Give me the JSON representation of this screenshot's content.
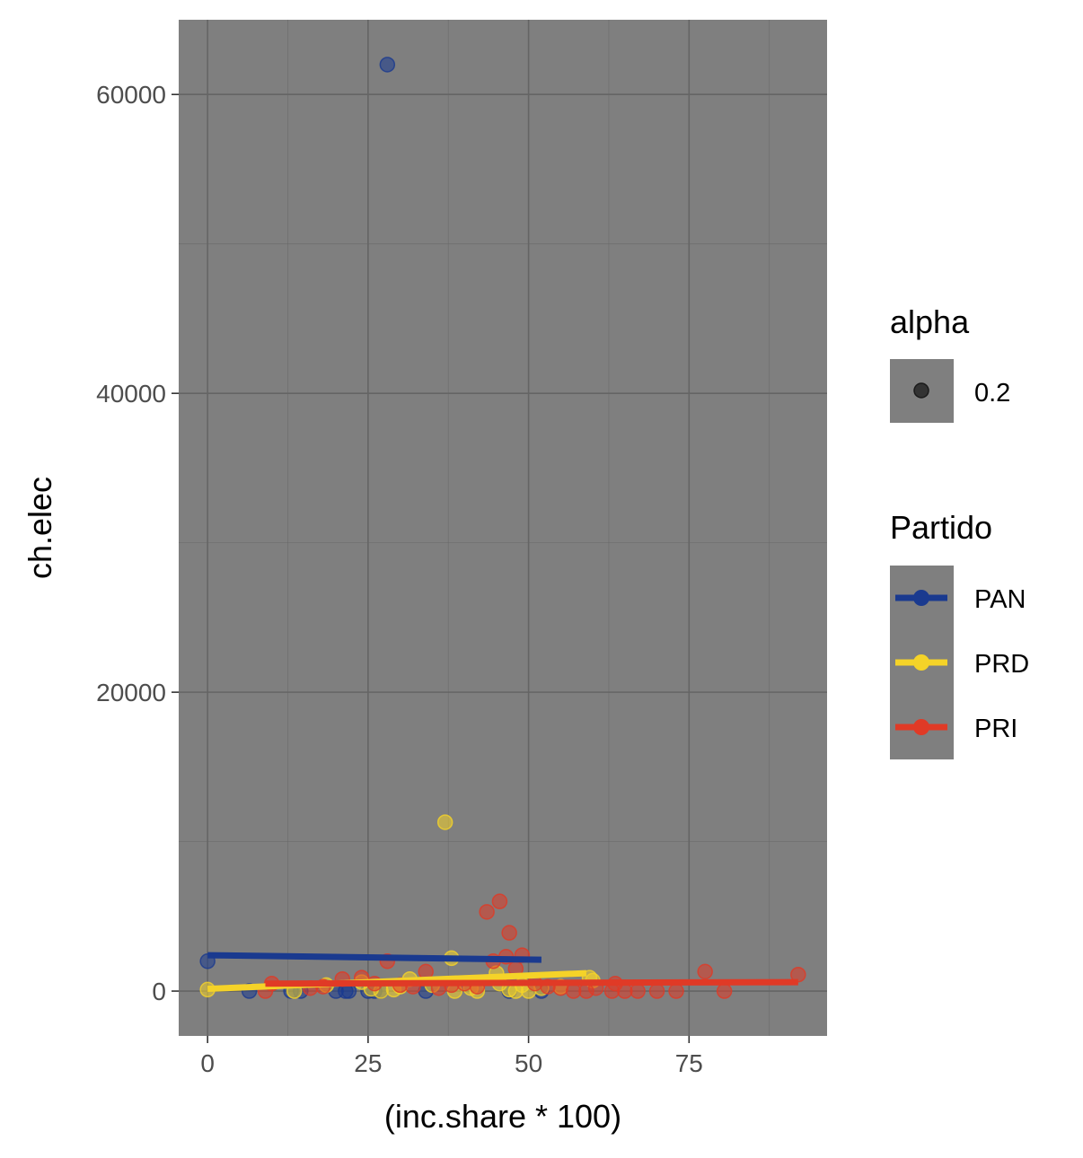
{
  "chart_data": {
    "type": "scatter",
    "title": "",
    "xlabel": "(inc.share * 100)",
    "ylabel": "ch.elec",
    "xlim": [
      -4.5,
      96.5
    ],
    "ylim": [
      -3000,
      65000
    ],
    "x_ticks": [
      0,
      25,
      50,
      75
    ],
    "x_tick_labels": [
      "0",
      "25",
      "50",
      "75"
    ],
    "y_ticks": [
      0,
      20000,
      40000,
      60000
    ],
    "y_tick_labels": [
      "0",
      "20000",
      "40000",
      "60000"
    ],
    "grid": true,
    "legend_position": "right",
    "panel_color": "#7f7f7f",
    "grid_color": "#656565",
    "legend": {
      "alpha": {
        "title": "alpha",
        "label": "0.2"
      },
      "partido": {
        "title": "Partido",
        "items": [
          {
            "label": "PAN",
            "color": "#1a3a8f"
          },
          {
            "label": "PRD",
            "color": "#f5d328"
          },
          {
            "label": "PRI",
            "color": "#e03a26"
          }
        ]
      }
    },
    "series": [
      {
        "name": "PAN",
        "color": "#1a3a8f",
        "points": [
          [
            0,
            2000
          ],
          [
            6.5,
            0
          ],
          [
            13,
            0
          ],
          [
            14.5,
            0
          ],
          [
            20,
            0
          ],
          [
            21.5,
            0
          ],
          [
            22,
            0
          ],
          [
            25,
            0
          ],
          [
            26,
            0
          ],
          [
            27,
            0
          ],
          [
            28,
            62000
          ],
          [
            34,
            0
          ],
          [
            47,
            0
          ],
          [
            52,
            0
          ]
        ],
        "fit": [
          [
            0,
            2400
          ],
          [
            52,
            2100
          ]
        ]
      },
      {
        "name": "PRD",
        "color": "#f5d328",
        "points": [
          [
            0,
            100
          ],
          [
            13.5,
            0
          ],
          [
            18.5,
            400
          ],
          [
            24,
            600
          ],
          [
            25.5,
            150
          ],
          [
            27,
            0
          ],
          [
            29,
            100
          ],
          [
            30,
            300
          ],
          [
            31.5,
            800
          ],
          [
            35,
            400
          ],
          [
            37,
            11300
          ],
          [
            38,
            2200
          ],
          [
            38.5,
            0
          ],
          [
            41,
            200
          ],
          [
            42,
            0
          ],
          [
            45,
            1200
          ],
          [
            45.5,
            500
          ],
          [
            47,
            100
          ],
          [
            48,
            0
          ],
          [
            49,
            400
          ],
          [
            50,
            0
          ],
          [
            52,
            200
          ],
          [
            55,
            300
          ],
          [
            59.5,
            900
          ],
          [
            60,
            700
          ]
        ],
        "fit": [
          [
            0,
            150
          ],
          [
            59,
            1200
          ]
        ]
      },
      {
        "name": "PRI",
        "color": "#e03a26",
        "points": [
          [
            9,
            0
          ],
          [
            10,
            500
          ],
          [
            16,
            200
          ],
          [
            18,
            300
          ],
          [
            21,
            800
          ],
          [
            24,
            900
          ],
          [
            26,
            500
          ],
          [
            28,
            2000
          ],
          [
            30,
            400
          ],
          [
            32,
            300
          ],
          [
            34,
            1300
          ],
          [
            36,
            200
          ],
          [
            38,
            400
          ],
          [
            40,
            500
          ],
          [
            42,
            300
          ],
          [
            43.5,
            5300
          ],
          [
            44.5,
            2000
          ],
          [
            45.5,
            6000
          ],
          [
            46.5,
            2300
          ],
          [
            47,
            3900
          ],
          [
            48,
            1500
          ],
          [
            49,
            2400
          ],
          [
            51,
            500
          ],
          [
            53,
            300
          ],
          [
            55,
            200
          ],
          [
            57,
            0
          ],
          [
            59,
            0
          ],
          [
            60.5,
            200
          ],
          [
            63,
            0
          ],
          [
            63.5,
            500
          ],
          [
            65,
            0
          ],
          [
            67,
            0
          ],
          [
            70,
            0
          ],
          [
            73,
            0
          ],
          [
            77.5,
            1300
          ],
          [
            80.5,
            0
          ],
          [
            92,
            1100
          ]
        ],
        "fit": [
          [
            9,
            500
          ],
          [
            92,
            600
          ]
        ]
      }
    ]
  }
}
